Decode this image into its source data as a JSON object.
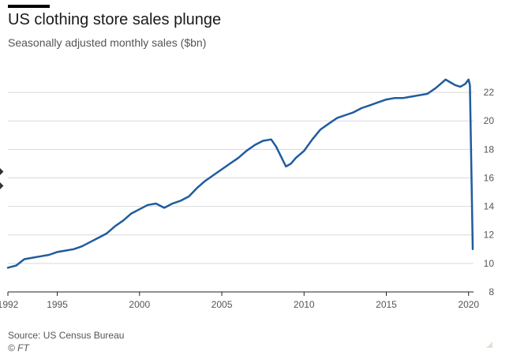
{
  "header": {
    "title": "US clothing store sales plunge",
    "subtitle": "Seasonally adjusted monthly sales ($bn)"
  },
  "footer": {
    "source": "Source: US Census Bureau",
    "credit": "© FT"
  },
  "colors": {
    "line": "#1f5c9e",
    "grid": "#d9d9d9",
    "axis": "#222222",
    "text": "#555555"
  },
  "chart_data": {
    "type": "line",
    "title": "US clothing store sales plunge",
    "subtitle": "Seasonally adjusted monthly sales ($bn)",
    "xlabel": "",
    "ylabel": "",
    "xlim": [
      1992,
      2020.3
    ],
    "ylim": [
      8,
      23.5
    ],
    "x_ticks": [
      1992,
      1995,
      2000,
      2005,
      2010,
      2015,
      2020
    ],
    "y_ticks": [
      8,
      10,
      12,
      14,
      16,
      18,
      20,
      22
    ],
    "y_axis_position": "right",
    "grid": "horizontal",
    "series": [
      {
        "x": [
          1992.0,
          1992.5,
          1993.0,
          1993.5,
          1994.0,
          1994.5,
          1995.0,
          1995.5,
          1996.0,
          1996.5,
          1997.0,
          1997.5,
          1998.0,
          1998.5,
          1999.0,
          1999.5,
          2000.0,
          2000.5,
          2001.0,
          2001.5,
          2002.0,
          2002.5,
          2003.0,
          2003.5,
          2004.0,
          2004.5,
          2005.0,
          2005.5,
          2006.0,
          2006.5,
          2007.0,
          2007.5,
          2008.0,
          2008.3,
          2008.6,
          2008.9,
          2009.2,
          2009.5,
          2010.0,
          2010.5,
          2011.0,
          2011.5,
          2012.0,
          2012.5,
          2013.0,
          2013.5,
          2014.0,
          2014.5,
          2015.0,
          2015.5,
          2016.0,
          2016.5,
          2017.0,
          2017.5,
          2018.0,
          2018.3,
          2018.6,
          2018.9,
          2019.2,
          2019.5,
          2019.8,
          2020.0,
          2020.08,
          2020.17,
          2020.25
        ],
        "values": [
          9.7,
          9.85,
          10.3,
          10.4,
          10.5,
          10.6,
          10.8,
          10.9,
          11.0,
          11.2,
          11.5,
          11.8,
          12.1,
          12.6,
          13.0,
          13.5,
          13.8,
          14.1,
          14.2,
          13.9,
          14.2,
          14.4,
          14.7,
          15.3,
          15.8,
          16.2,
          16.6,
          17.0,
          17.4,
          17.9,
          18.3,
          18.6,
          18.7,
          18.2,
          17.5,
          16.8,
          17.0,
          17.4,
          17.9,
          18.7,
          19.4,
          19.8,
          20.2,
          20.4,
          20.6,
          20.9,
          21.1,
          21.3,
          21.5,
          21.6,
          21.6,
          21.7,
          21.8,
          21.9,
          22.3,
          22.6,
          22.9,
          22.7,
          22.5,
          22.4,
          22.6,
          22.9,
          22.5,
          16.5,
          11.0
        ]
      }
    ]
  }
}
